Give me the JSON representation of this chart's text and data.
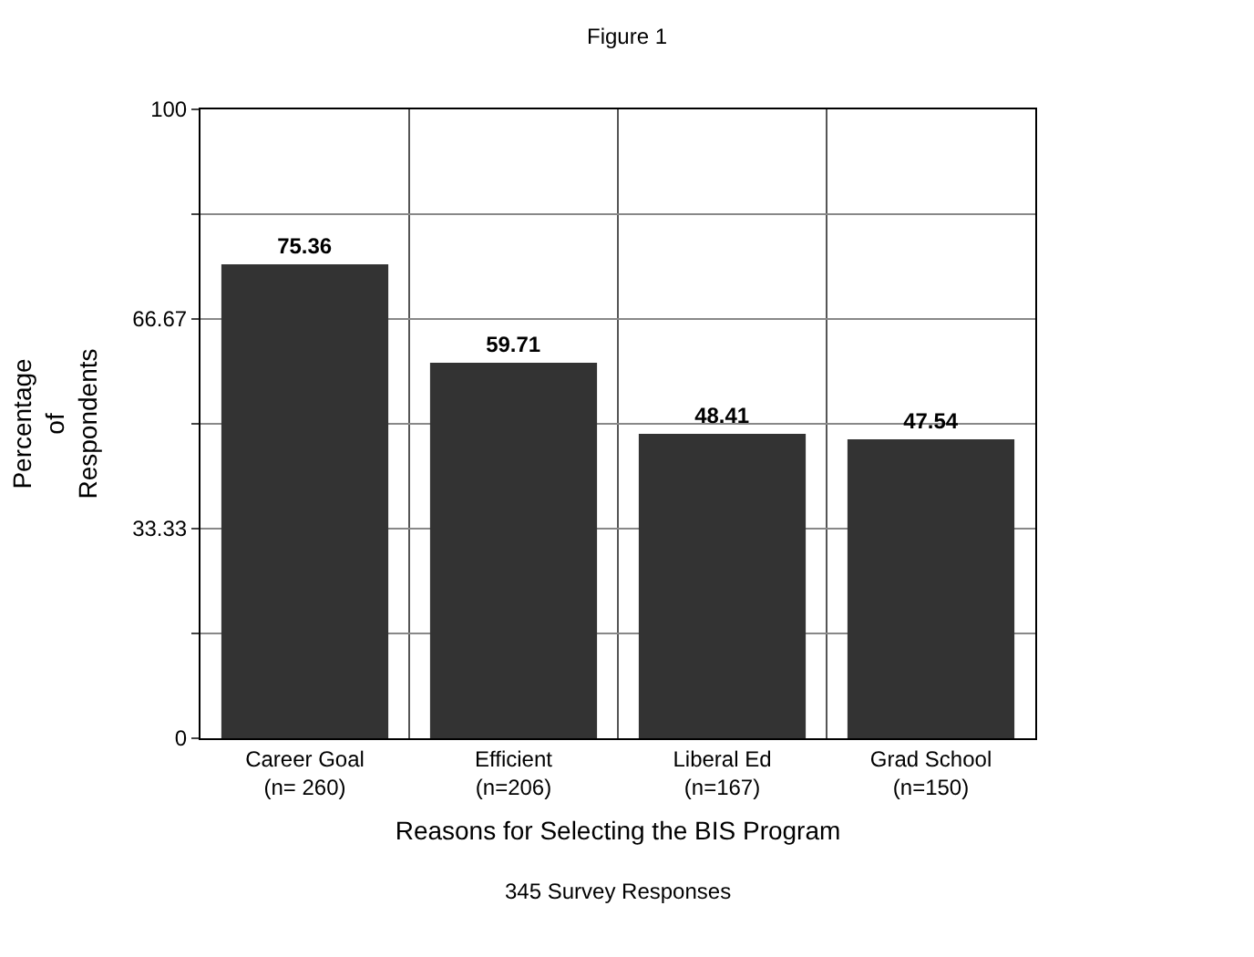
{
  "chart_data": {
    "type": "bar",
    "title": "Figure 1",
    "categories": [
      "Career Goal\n(n= 260)",
      "Efficient\n(n=206)",
      "Liberal Ed\n(n=167)",
      "Grad School\n(n=150)"
    ],
    "series": [
      {
        "color": "#333333",
        "values": [
          75.36,
          59.71,
          48.41,
          47.54
        ]
      }
    ],
    "xlabel": "Reasons for Selecting the BIS Program",
    "ylabel": "Percentage\nof\nRespondents",
    "annotations": [
      "345 Survey Responses"
    ],
    "ylim": [
      0,
      100
    ],
    "yticks": [
      0,
      {
        "value": 16.67,
        "label": null
      },
      33.33,
      {
        "value": 50,
        "label": null
      },
      66.67,
      {
        "value": 83.33,
        "label": null
      },
      100
    ],
    "grid": true,
    "data_labels": true
  }
}
